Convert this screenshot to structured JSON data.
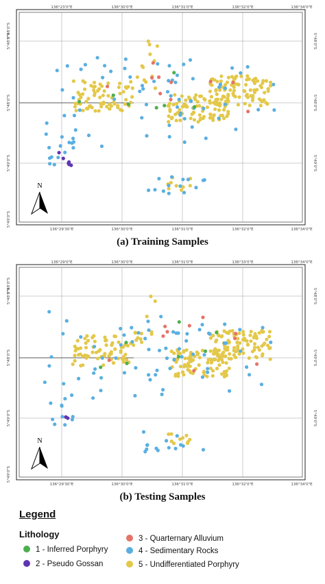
{
  "map_a": {
    "caption": "(a) Training Samples",
    "top_lon_labels": [
      "136°23'0\"E",
      "136°30'0\"E",
      "136°31'0\"E",
      "136°32'0\"E",
      "136°34'0\"E"
    ],
    "bottom_lon_labels": [
      "136°29'30\"E",
      "136°30'0\"E",
      "136°31'0\"E",
      "136°32'0\"E",
      "136°34'0\"E"
    ],
    "left_lat_labels": [
      "5°48'0\"S",
      "5°48'0\"S",
      "5°48'0\"S",
      "5°49'0\"S",
      "5°49'0\"S"
    ],
    "right_lat_labels": [
      "5°48'0\"S",
      "5°48'0\"S",
      "5°49'0\"S"
    ],
    "north_label": "N"
  },
  "map_b": {
    "caption": "(b) Testing Samples",
    "top_lon_labels": [
      "136°29'0\"E",
      "136°30'0\"E",
      "136°31'0\"E",
      "136°33'0\"E",
      "136°34'0\"E"
    ],
    "bottom_lon_labels": [
      "136°29'30\"E",
      "136°30'0\"E",
      "136°31'0\"E",
      "136°32'0\"E",
      "136°34'0\"E"
    ],
    "left_lat_labels": [
      "5°48'0\"S",
      "5°48'0\"S",
      "5°48'0\"S",
      "5°49'0\"S",
      "5°49'0\"S"
    ],
    "right_lat_labels": [
      "5°48'0\"S",
      "5°49'0\"S",
      "5°49'0\"S"
    ],
    "north_label": "N"
  },
  "legend": {
    "title": "Legend",
    "subtitle": "Lithology",
    "items": [
      {
        "label": "1 - Inferred Porphyry",
        "color": "#4caf50"
      },
      {
        "label": "2 - Pseudo Gossan",
        "color": "#5e35b1"
      },
      {
        "label": "3 - Quarternary Alluvium",
        "color": "#e57368"
      },
      {
        "label": "4 - Sedimentary Rocks",
        "color": "#5aafe0"
      },
      {
        "label": "5 - Undifferentiated Porphyry",
        "color": "#e3c84a"
      }
    ]
  },
  "colors": {
    "inferred_porphyry": "#4caf50",
    "pseudo_gossan": "#5e35b1",
    "quarternary_alluvium": "#e57368",
    "sedimentary_rocks": "#5aafe0",
    "undifferentiated_porphyry": "#e3c84a"
  }
}
